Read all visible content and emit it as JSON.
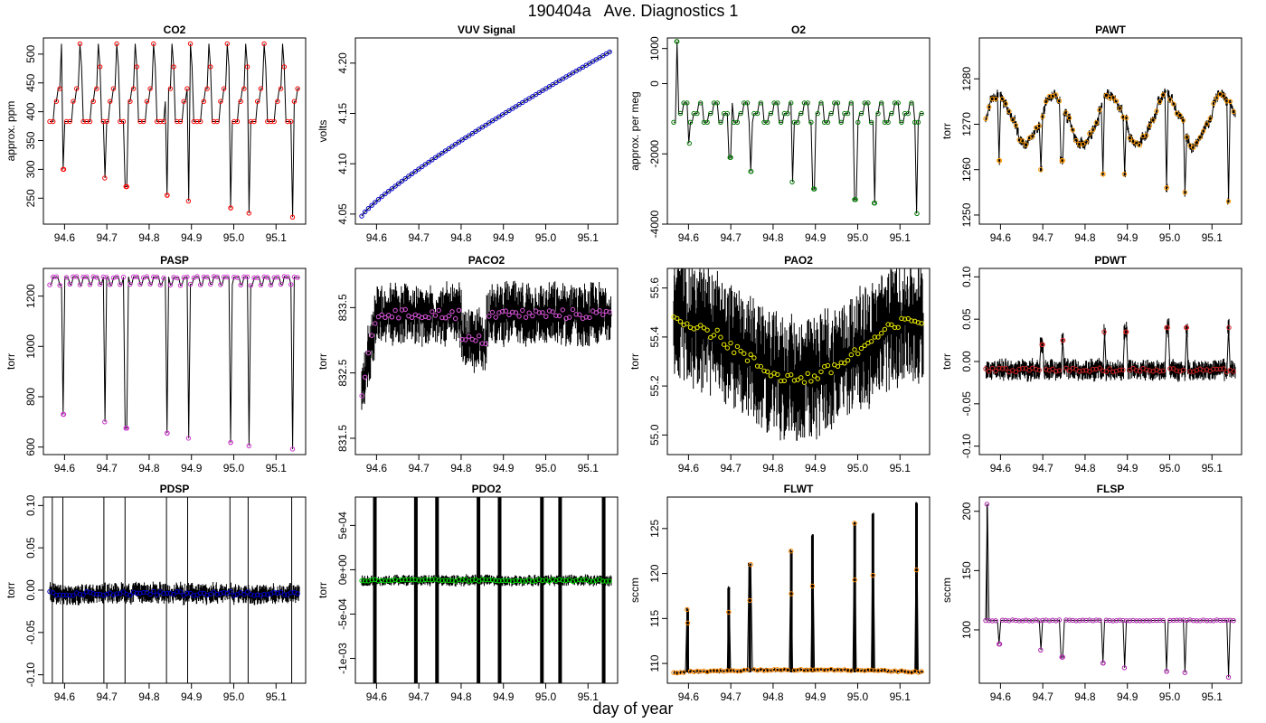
{
  "figure": {
    "title": "190404a   Ave. Diagnostics 1",
    "xlabel": "day of year"
  },
  "chart_data": [
    {
      "type": "line",
      "title": "CO2",
      "ylabel": "approx. ppm",
      "xlim": [
        94.55,
        95.17
      ],
      "ylim": [
        205,
        528
      ],
      "xticks": [
        "94.6",
        "94.7",
        "94.8",
        "94.9",
        "95.0",
        "95.1"
      ],
      "yticks": [
        "250",
        "300",
        "350",
        "400",
        "450",
        "500"
      ],
      "marker_color": "#ff0000",
      "pattern": "co2",
      "x_start": 94.565,
      "x_end": 95.155,
      "params": {
        "low": 383,
        "mid": 418,
        "high1": 440,
        "high2": 478,
        "top": 518
      },
      "dips": [
        [
          94.598,
          300
        ],
        [
          94.695,
          285
        ],
        [
          94.745,
          270
        ],
        [
          94.843,
          255
        ],
        [
          94.893,
          245
        ],
        [
          94.993,
          233
        ],
        [
          95.036,
          224
        ],
        [
          95.139,
          217
        ]
      ]
    },
    {
      "type": "line",
      "title": "VUV Signal",
      "ylabel": "volts",
      "xlim": [
        94.55,
        95.17
      ],
      "ylim": [
        4.04,
        4.225
      ],
      "xticks": [
        "94.6",
        "94.7",
        "94.8",
        "94.9",
        "95.0",
        "95.1"
      ],
      "yticks": [
        "4.05",
        "4.10",
        "4.15",
        "4.20"
      ],
      "marker_color": "#0000cc",
      "pattern": "trend",
      "x_start": 94.565,
      "x_end": 95.155,
      "params": {
        "y_start": 4.048,
        "y_end": 4.212
      },
      "dips": []
    },
    {
      "type": "line",
      "title": "O2",
      "ylabel": "approx. per meg",
      "xlim": [
        94.55,
        95.17
      ],
      "ylim": [
        -4000,
        1300
      ],
      "xticks": [
        "94.6",
        "94.7",
        "94.8",
        "94.9",
        "95.0",
        "95.1"
      ],
      "yticks": [
        "-4000",
        "-2000",
        "0",
        "1000"
      ],
      "marker_color": "#007700",
      "pattern": "o2",
      "x_start": 94.565,
      "x_end": 95.155,
      "params": {
        "low": -1100,
        "mid": -850,
        "high": -550
      },
      "dips": [
        [
          94.572,
          1200
        ],
        [
          94.602,
          -1700
        ],
        [
          94.698,
          -2100
        ],
        [
          94.748,
          -2500
        ],
        [
          94.845,
          -2800
        ],
        [
          94.896,
          -3000
        ],
        [
          94.995,
          -3300
        ],
        [
          95.039,
          -3400
        ],
        [
          95.14,
          -3700
        ]
      ]
    },
    {
      "type": "line",
      "title": "PAWT",
      "ylabel": "torr",
      "xlim": [
        94.55,
        95.17
      ],
      "ylim": [
        1248,
        1289
      ],
      "xticks": [
        "94.6",
        "94.7",
        "94.8",
        "94.9",
        "95.0",
        "95.1"
      ],
      "yticks": [
        "1250",
        "1260",
        "1270",
        "1280"
      ],
      "marker_color": "#ff9900",
      "pattern": "pawt",
      "x_start": 94.565,
      "x_end": 95.155,
      "params": {
        "base": 1271
      },
      "dips": [
        [
          94.598,
          1262
        ],
        [
          94.695,
          1260
        ],
        [
          94.745,
          1262
        ],
        [
          94.843,
          1259
        ],
        [
          94.893,
          1259
        ],
        [
          94.993,
          1256
        ],
        [
          95.036,
          1255
        ],
        [
          95.139,
          1253
        ]
      ]
    },
    {
      "type": "line",
      "title": "PASP",
      "ylabel": "torr",
      "xlim": [
        94.55,
        95.17
      ],
      "ylim": [
        570,
        1310
      ],
      "xticks": [
        "94.6",
        "94.7",
        "94.8",
        "94.9",
        "95.0",
        "95.1"
      ],
      "yticks": [
        "600",
        "800",
        "1000",
        "1200"
      ],
      "marker_color": "#cc33cc",
      "pattern": "pasp",
      "x_start": 94.565,
      "x_end": 95.155,
      "params": {
        "base": 1265
      },
      "dips": [
        [
          94.598,
          730
        ],
        [
          94.695,
          700
        ],
        [
          94.745,
          675
        ],
        [
          94.843,
          655
        ],
        [
          94.893,
          635
        ],
        [
          94.993,
          618
        ],
        [
          95.036,
          605
        ],
        [
          95.139,
          592
        ]
      ]
    },
    {
      "type": "line",
      "title": "PACO2",
      "ylabel": "torr",
      "xlim": [
        94.55,
        95.17
      ],
      "ylim": [
        831.25,
        834.1
      ],
      "xticks": [
        "94.6",
        "94.7",
        "94.8",
        "94.9",
        "95.0",
        "95.1"
      ],
      "yticks": [
        "831.5",
        "832.5",
        "833.5"
      ],
      "marker_color": "#dd55dd",
      "pattern": "paco2",
      "x_start": 94.565,
      "x_end": 95.155,
      "params": {
        "base": 833.4
      },
      "dips": []
    },
    {
      "type": "line",
      "title": "PAO2",
      "ylabel": "torr",
      "xlim": [
        94.55,
        95.17
      ],
      "ylim": [
        54.92,
        55.68
      ],
      "xticks": [
        "94.6",
        "94.7",
        "94.8",
        "94.9",
        "95.0",
        "95.1"
      ],
      "yticks": [
        "55.0",
        "55.2",
        "55.4",
        "55.6"
      ],
      "marker_color": "#eeee00",
      "pattern": "pao2",
      "x_start": 94.565,
      "x_end": 95.155,
      "params": {
        "base": 55.35
      },
      "dips": []
    },
    {
      "type": "line",
      "title": "PDWT",
      "ylabel": "torr",
      "xlim": [
        94.55,
        95.17
      ],
      "ylim": [
        -0.11,
        0.11
      ],
      "xticks": [
        "94.6",
        "94.7",
        "94.8",
        "94.9",
        "95.0",
        "95.1"
      ],
      "yticks": [
        "-0.10",
        "-0.05",
        "0.00",
        "0.05",
        "0.10"
      ],
      "marker_color": "#cc2222",
      "pattern": "noise",
      "x_start": 94.565,
      "x_end": 95.155,
      "params": {
        "center": -0.01,
        "amp": 0.012
      },
      "dips": [
        [
          94.698,
          0.02
        ],
        [
          94.748,
          0.025
        ],
        [
          94.845,
          0.035
        ],
        [
          94.896,
          0.035
        ],
        [
          94.995,
          0.04
        ],
        [
          95.039,
          0.04
        ],
        [
          95.14,
          0.04
        ]
      ]
    },
    {
      "type": "line",
      "title": "PDSP",
      "ylabel": "torr",
      "xlim": [
        94.55,
        95.17
      ],
      "ylim": [
        -0.11,
        0.11
      ],
      "xticks": [
        "94.6",
        "94.7",
        "94.8",
        "94.9",
        "95.0",
        "95.1"
      ],
      "yticks": [
        "-0.10",
        "-0.05",
        "0.00",
        "0.05",
        "0.10"
      ],
      "marker_color": "#0000cc",
      "pattern": "pdsp",
      "x_start": 94.565,
      "x_end": 95.155,
      "params": {
        "center": -0.004,
        "amp": 0.012
      },
      "dips": [
        [
          94.571,
          0
        ],
        [
          94.596,
          0
        ],
        [
          94.693,
          0
        ],
        [
          94.743,
          0
        ],
        [
          94.841,
          0
        ],
        [
          94.891,
          0
        ],
        [
          94.991,
          0
        ],
        [
          95.034,
          0
        ],
        [
          95.137,
          0
        ]
      ]
    },
    {
      "type": "line",
      "title": "PDO2",
      "ylabel": "torr",
      "xlim": [
        94.55,
        95.17
      ],
      "ylim": [
        -0.00128,
        0.00082
      ],
      "xticks": [
        "94.6",
        "94.7",
        "94.8",
        "94.9",
        "95.0",
        "95.1"
      ],
      "yticks": [
        "-1e-03",
        "-5e-04",
        "0e+00",
        "5e-04"
      ],
      "marker_color": "#00dd00",
      "pattern": "pdo2",
      "x_start": 94.565,
      "x_end": 95.155,
      "params": {
        "center": -0.00012,
        "amp": 6e-05
      },
      "dips": [
        [
          94.596,
          0
        ],
        [
          94.693,
          0
        ],
        [
          94.743,
          0
        ],
        [
          94.841,
          0
        ],
        [
          94.891,
          0
        ],
        [
          94.991,
          0
        ],
        [
          95.034,
          0
        ],
        [
          95.137,
          0
        ]
      ]
    },
    {
      "type": "line",
      "title": "FLWT",
      "ylabel": "sccm",
      "xlim": [
        94.55,
        95.17
      ],
      "ylim": [
        107.8,
        128.5
      ],
      "xticks": [
        "94.6",
        "94.7",
        "94.8",
        "94.9",
        "95.0",
        "95.1"
      ],
      "yticks": [
        "110",
        "115",
        "120",
        "125"
      ],
      "marker_color": "#ff8800",
      "pattern": "flwt",
      "x_start": 94.565,
      "x_end": 95.155,
      "params": {
        "base": 109.0
      },
      "dips": [
        [
          94.598,
          116
        ],
        [
          94.695,
          118.4
        ],
        [
          94.745,
          121
        ],
        [
          94.843,
          122.5
        ],
        [
          94.893,
          124.2
        ],
        [
          94.993,
          125.6
        ],
        [
          95.036,
          126.6
        ],
        [
          95.139,
          127.8
        ]
      ]
    },
    {
      "type": "line",
      "title": "FLSP",
      "ylabel": "sccm",
      "xlim": [
        94.55,
        95.17
      ],
      "ylim": [
        55,
        212
      ],
      "xticks": [
        "94.6",
        "94.7",
        "94.8",
        "94.9",
        "95.0",
        "95.1"
      ],
      "yticks": [
        "100",
        "150",
        "200"
      ],
      "marker_color": "#aa22aa",
      "pattern": "flsp",
      "x_start": 94.565,
      "x_end": 95.155,
      "params": {
        "base": 108
      },
      "dips": [
        [
          94.568,
          206
        ],
        [
          94.598,
          88
        ],
        [
          94.695,
          83
        ],
        [
          94.745,
          77
        ],
        [
          94.843,
          72
        ],
        [
          94.893,
          68
        ],
        [
          94.993,
          65
        ],
        [
          95.036,
          64
        ],
        [
          95.139,
          60
        ]
      ]
    }
  ]
}
